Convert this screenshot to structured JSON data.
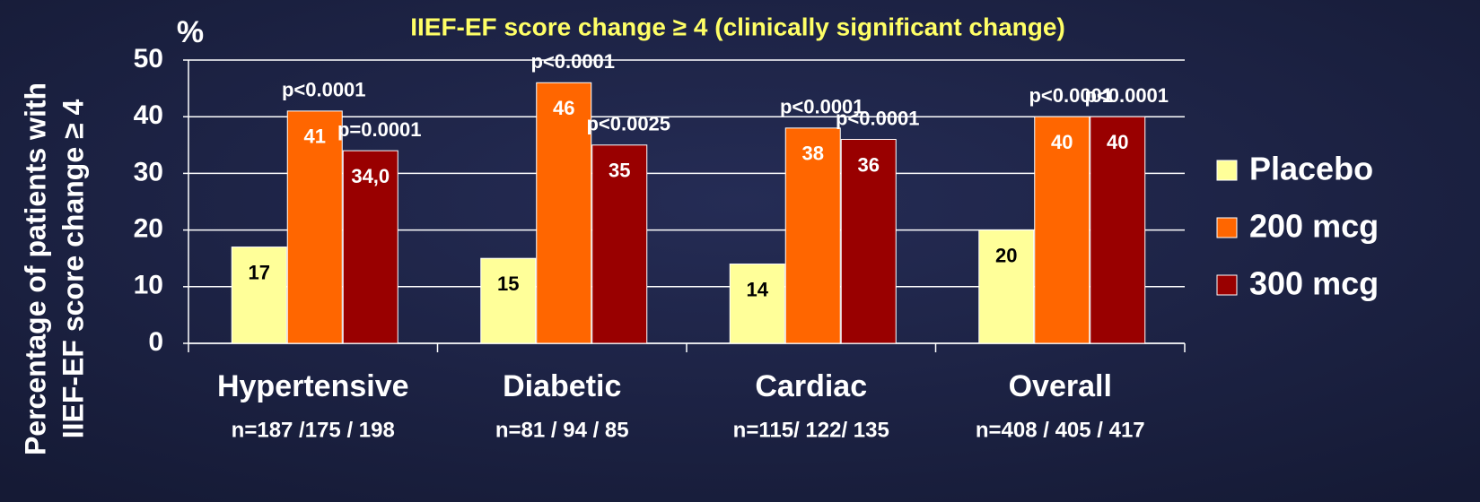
{
  "chart_data": {
    "type": "bar",
    "title": "IIEF-EF score change ≥ 4  (clinically significant change)",
    "unit_label": "%",
    "y_label": [
      "Percentage of patients with",
      "IIEF-EF score change ≥ 4"
    ],
    "categories": [
      "Hypertensive",
      "Diabetic",
      "Cardiac",
      "Overall"
    ],
    "category_notes": [
      "n=187  /175 / 198",
      "n=81 / 94 / 85",
      "n=115/  122/  135",
      "n=408 / 405 / 417"
    ],
    "series": [
      {
        "name": "Placebo",
        "color": "#ffff99",
        "values": [
          17,
          15,
          14,
          20
        ]
      },
      {
        "name": "200 mcg",
        "color": "#ff6600",
        "values": [
          41,
          46,
          38,
          40
        ],
        "p_values": [
          "p<0.0001",
          "p<0.0001",
          "p<0.0001",
          "p<0.0001"
        ]
      },
      {
        "name": "300 mcg",
        "color": "#990000",
        "values": [
          34,
          35,
          36,
          40
        ],
        "value_labels": [
          "34,0",
          "35",
          "36",
          "40"
        ],
        "p_values": [
          "p=0.0001",
          "p<0.0025",
          "p<0.0001",
          "p<0.0001"
        ]
      }
    ],
    "ylim": [
      0,
      50
    ],
    "yticks": [
      0,
      10,
      20,
      30,
      40,
      50
    ],
    "grid": true,
    "legend": "right"
  }
}
